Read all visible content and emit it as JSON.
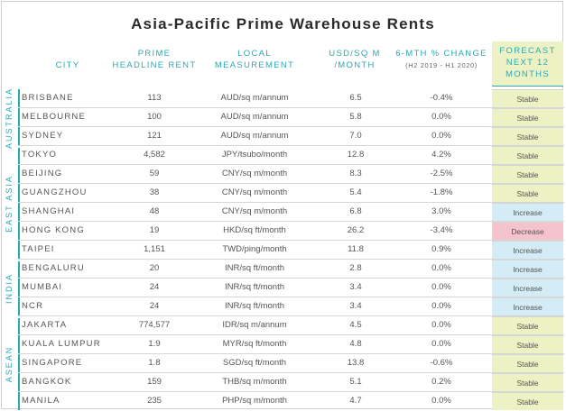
{
  "title": "Asia-Pacific Prime Warehouse Rents",
  "headers": {
    "city": "CITY",
    "rent_l1": "PRIME",
    "rent_l2": "HEADLINE RENT",
    "local_l1": "LOCAL",
    "local_l2": "MEASUREMENT",
    "usd_l1": "USD/SQ M",
    "usd_l2": "/MONTH",
    "chg_l1": "6-MTH % CHANGE",
    "chg_l2": "(H2 2019 - H1 2020)",
    "fc_l1": "FORECAST",
    "fc_l2": "NEXT 12",
    "fc_l3": "MONTHS"
  },
  "groups": [
    "AUSTRALIA",
    "EAST ASIA",
    "INDIA",
    "ASEAN"
  ],
  "rows": [
    {
      "city": "BRISBANE",
      "rent": "113",
      "local": "AUD/sq m/annum",
      "usd": "6.5",
      "change": "-0.4%",
      "forecast": "Stable"
    },
    {
      "city": "MELBOURNE",
      "rent": "100",
      "local": "AUD/sq m/annum",
      "usd": "5.8",
      "change": "0.0%",
      "forecast": "Stable"
    },
    {
      "city": "SYDNEY",
      "rent": "121",
      "local": "AUD/sq m/annum",
      "usd": "7.0",
      "change": "0.0%",
      "forecast": "Stable"
    },
    {
      "city": "TOKYO",
      "rent": "4,582",
      "local": "JPY/tsubo/month",
      "usd": "12.8",
      "change": "4.2%",
      "forecast": "Stable"
    },
    {
      "city": "BEIJING",
      "rent": "59",
      "local": "CNY/sq m/month",
      "usd": "8.3",
      "change": "-2.5%",
      "forecast": "Stable"
    },
    {
      "city": "GUANGZHOU",
      "rent": "38",
      "local": "CNY/sq m/month",
      "usd": "5.4",
      "change": "-1.8%",
      "forecast": "Stable"
    },
    {
      "city": "SHANGHAI",
      "rent": "48",
      "local": "CNY/sq m/month",
      "usd": "6.8",
      "change": "3.0%",
      "forecast": "Increase"
    },
    {
      "city": "HONG KONG",
      "rent": "19",
      "local": "HKD/sq ft/month",
      "usd": "26.2",
      "change": "-3.4%",
      "forecast": "Decrease"
    },
    {
      "city": "TAIPEI",
      "rent": "1,151",
      "local": "TWD/ping/month",
      "usd": "11.8",
      "change": "0.9%",
      "forecast": "Increase"
    },
    {
      "city": "BENGALURU",
      "rent": "20",
      "local": "INR/sq ft/month",
      "usd": "2.8",
      "change": "0.0%",
      "forecast": "Increase"
    },
    {
      "city": "MUMBAI",
      "rent": "24",
      "local": "INR/sq ft/month",
      "usd": "3.4",
      "change": "0.0%",
      "forecast": "Increase"
    },
    {
      "city": "NCR",
      "rent": "24",
      "local": "INR/sq ft/month",
      "usd": "3.4",
      "change": "0.0%",
      "forecast": "Increase"
    },
    {
      "city": "JAKARTA",
      "rent": "774,577",
      "local": "IDR/sq m/annum",
      "usd": "4.5",
      "change": "0.0%",
      "forecast": "Stable"
    },
    {
      "city": "KUALA LUMPUR",
      "rent": "1.9",
      "local": "MYR/sq ft/month",
      "usd": "4.8",
      "change": "0.0%",
      "forecast": "Stable"
    },
    {
      "city": "SINGAPORE",
      "rent": "1.8",
      "local": "SGD/sq ft/month",
      "usd": "13.8",
      "change": "-0.6%",
      "forecast": "Stable"
    },
    {
      "city": "BANGKOK",
      "rent": "159",
      "local": "THB/sq m/month",
      "usd": "5.1",
      "change": "0.2%",
      "forecast": "Stable"
    },
    {
      "city": "MANILA",
      "rent": "235",
      "local": "PHP/sq m/month",
      "usd": "4.7",
      "change": "0.0%",
      "forecast": "Stable"
    }
  ],
  "colors": {
    "accent": "#2aa8b4",
    "stable": "#edf2c5",
    "increase": "#d3ecf5",
    "decrease": "#f4c3cb"
  }
}
